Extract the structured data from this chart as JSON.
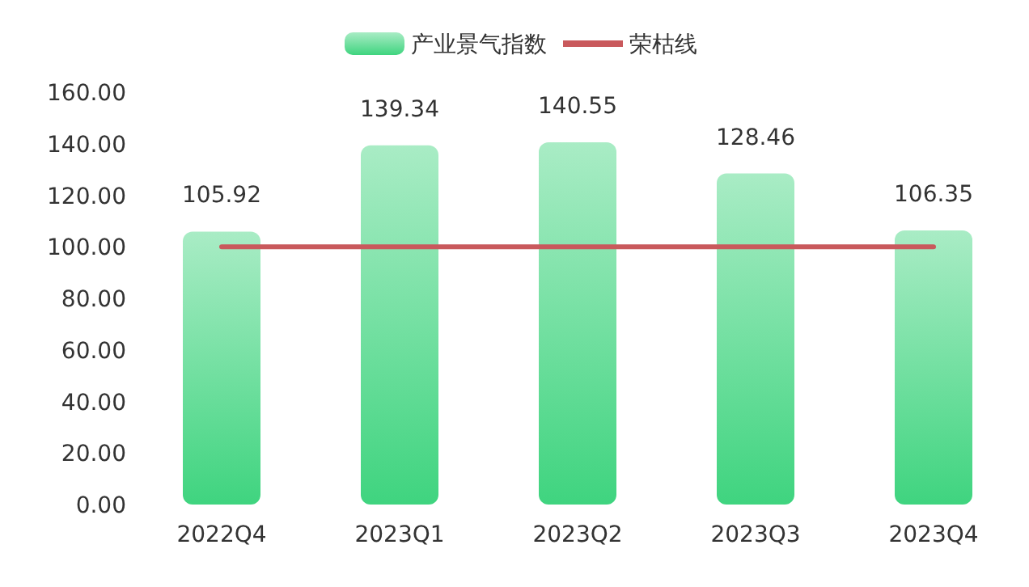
{
  "chart_data": {
    "type": "bar",
    "categories": [
      "2022Q4",
      "2023Q1",
      "2023Q2",
      "2023Q3",
      "2023Q4"
    ],
    "series": [
      {
        "name": "产业景气指数",
        "type": "bar",
        "color": "#3fd47f",
        "values": [
          105.92,
          139.34,
          140.55,
          128.46,
          106.35
        ],
        "value_labels": [
          "105.92",
          "139.34",
          "140.55",
          "128.46",
          "106.35"
        ]
      },
      {
        "name": "荣枯线",
        "type": "line",
        "color": "#c9595c",
        "values": [
          100,
          100,
          100,
          100,
          100
        ]
      }
    ],
    "ylim": [
      0,
      160
    ],
    "yticks": [
      {
        "value": 0,
        "label": "0.00"
      },
      {
        "value": 20,
        "label": "20.00"
      },
      {
        "value": 40,
        "label": "40.00"
      },
      {
        "value": 60,
        "label": "60.00"
      },
      {
        "value": 80,
        "label": "80.00"
      },
      {
        "value": 100,
        "label": "100.00"
      },
      {
        "value": 120,
        "label": "120.00"
      },
      {
        "value": 140,
        "label": "140.00"
      },
      {
        "value": 160,
        "label": "160.00"
      }
    ],
    "grid": false,
    "legend": "top"
  }
}
